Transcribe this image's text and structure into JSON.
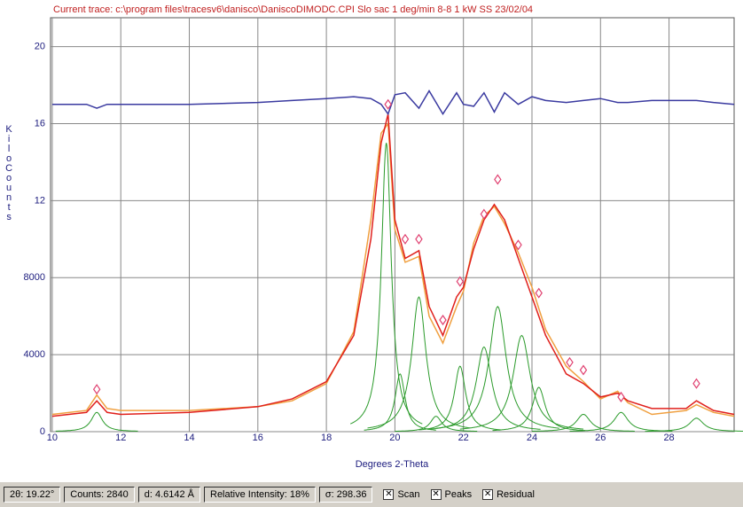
{
  "chart_data": {
    "type": "line",
    "title": "Current trace: c:\\program files\\tracesv6\\danisco\\DaniscoDIMODC.CPI  Slo sac 1 deg/min 8-8 1 kW SS  23/02/04",
    "x_label": "Degrees 2-Theta",
    "y_label": "KiloCounts",
    "xlim": [
      9.95,
      29.9
    ],
    "ylim": [
      0,
      21.5
    ],
    "xticks": [
      10,
      12,
      14,
      16,
      18,
      20,
      22,
      24,
      26,
      28
    ],
    "yticks": [
      0,
      {
        "value": 4,
        "label": "4000"
      },
      {
        "value": 8,
        "label": "8000"
      },
      12,
      16,
      20
    ],
    "grid": true,
    "x": [
      10,
      11,
      11.3,
      11.6,
      12,
      14,
      16,
      17,
      18,
      18.8,
      19.3,
      19.6,
      19.8,
      20.0,
      20.3,
      20.7,
      21.0,
      21.4,
      21.8,
      22.0,
      22.3,
      22.6,
      22.9,
      23.2,
      23.6,
      24.0,
      24.4,
      25,
      25.5,
      26,
      26.5,
      26.8,
      27.5,
      28.5,
      28.8,
      29.3,
      29.9
    ],
    "series": [
      {
        "color": "#f0a040",
        "values": [
          0.9,
          1.1,
          1.9,
          1.2,
          1.1,
          1.1,
          1.3,
          1.6,
          2.5,
          5.2,
          11,
          15.5,
          16,
          10.5,
          8.8,
          9.1,
          6,
          4.6,
          6.5,
          7.3,
          9.8,
          11.2,
          11.7,
          10.8,
          9.3,
          7.5,
          5.3,
          3.4,
          2.6,
          1.7,
          2.1,
          1.5,
          0.9,
          1.1,
          1.4,
          1.0,
          0.8
        ]
      },
      {
        "color": "#e0201c",
        "values": [
          0.8,
          1.0,
          1.6,
          1.0,
          0.9,
          1.0,
          1.3,
          1.7,
          2.6,
          5,
          10,
          15,
          16.5,
          11,
          9,
          9.4,
          6.5,
          5,
          7,
          7.5,
          9.5,
          11,
          11.8,
          11,
          9,
          7,
          5,
          3,
          2.5,
          1.8,
          2,
          1.6,
          1.2,
          1.2,
          1.6,
          1.1,
          0.9
        ]
      },
      {
        "color": "#3a3aa0",
        "values": [
          17,
          17,
          16.8,
          17,
          17,
          17,
          17.1,
          17.2,
          17.3,
          17.4,
          17.3,
          17.0,
          16.5,
          17.5,
          17.6,
          16.8,
          17.7,
          16.5,
          17.6,
          17,
          16.9,
          17.6,
          16.6,
          17.6,
          17,
          17.4,
          17.2,
          17.1,
          17.2,
          17.3,
          17.1,
          17.1,
          17.2,
          17.2,
          17.2,
          17.1,
          17.0
        ]
      }
    ],
    "peak_color": "#2a9a2a",
    "peaks": [
      {
        "position": 11.3,
        "height": 1,
        "fwhm": 0.4
      },
      {
        "position": 19.75,
        "height": 15,
        "fwhm": 0.35
      },
      {
        "position": 20.15,
        "height": 3,
        "fwhm": 0.35
      },
      {
        "position": 20.7,
        "height": 7,
        "fwhm": 0.5
      },
      {
        "position": 21.2,
        "height": 0.8,
        "fwhm": 0.4
      },
      {
        "position": 21.9,
        "height": 3.4,
        "fwhm": 0.4
      },
      {
        "position": 22.6,
        "height": 4.4,
        "fwhm": 0.55
      },
      {
        "position": 23.0,
        "height": 6.5,
        "fwhm": 0.6
      },
      {
        "position": 23.7,
        "height": 5,
        "fwhm": 0.6
      },
      {
        "position": 24.2,
        "height": 2.3,
        "fwhm": 0.45
      },
      {
        "position": 25.5,
        "height": 0.9,
        "fwhm": 0.5
      },
      {
        "position": 26.6,
        "height": 1,
        "fwhm": 0.5
      },
      {
        "position": 28.8,
        "height": 0.7,
        "fwhm": 0.5
      }
    ],
    "marker_color": "#e04070",
    "peak_markers": {
      "x": [
        11.3,
        19.8,
        20.3,
        20.7,
        21.4,
        21.9,
        22.6,
        23.0,
        23.6,
        24.2,
        25.1,
        25.5,
        26.6,
        28.8
      ],
      "y": [
        2.2,
        17,
        10,
        10,
        5.8,
        7.8,
        11.3,
        13.1,
        9.7,
        7.2,
        3.6,
        3.2,
        1.8,
        2.5
      ]
    }
  },
  "status_bar": {
    "fields": [
      "2θ: 19.22°",
      "Counts: 2840",
      "d: 4.6142 Å",
      "Relative Intensity: 18%",
      "σ: 298.36"
    ],
    "checkboxes": [
      "Scan",
      "Peaks",
      "Residual"
    ]
  }
}
